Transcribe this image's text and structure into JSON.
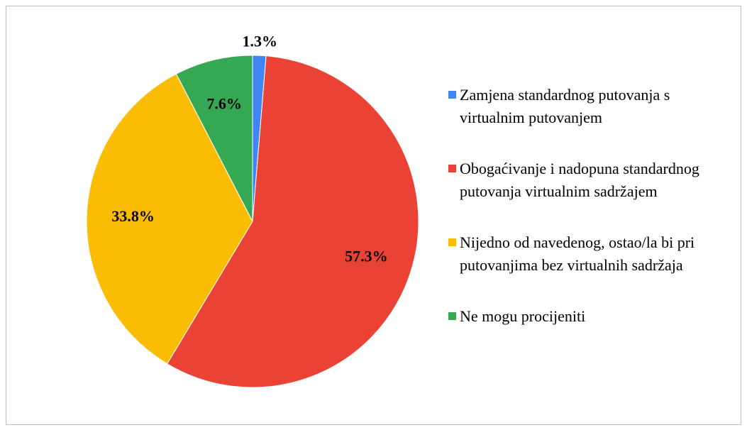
{
  "chart_data": {
    "type": "pie",
    "categories": [
      "Zamjena standardnog putovanja s virtualnim putovanjem",
      "Obogaćivanje i nadopuna standardnog putovanja virtualnim sadržajem",
      "Nijedno od navedenog, ostao/la bi pri putovanjima bez virtualnih sadržaja",
      "Ne mogu procijeniti"
    ],
    "values": [
      1.3,
      57.3,
      33.8,
      7.6
    ],
    "value_labels": [
      "1.3%",
      "57.3%",
      "33.8%",
      "7.6%"
    ],
    "colors": [
      "#4285f4",
      "#ea4335",
      "#fbbc04",
      "#34a853"
    ],
    "legend": "right"
  }
}
